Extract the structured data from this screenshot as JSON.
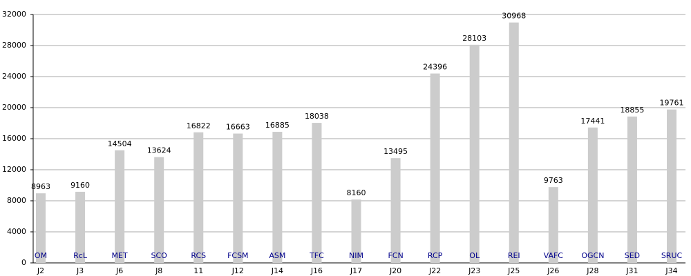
{
  "chart_data": {
    "type": "bar",
    "categories": [
      "J2",
      "J3",
      "J6",
      "J8",
      "11",
      "J12",
      "J14",
      "J16",
      "J17",
      "J20",
      "J22",
      "J23",
      "J25",
      "J26",
      "J28",
      "J31",
      "J34"
    ],
    "team_labels": [
      "OM",
      "RcL",
      "MET",
      "SCO",
      "RCS",
      "FCSM",
      "ASM",
      "TFC",
      "NIM",
      "FCN",
      "RCP",
      "OL",
      "REI",
      "VAFC",
      "OGCN",
      "SED",
      "SRUC"
    ],
    "values": [
      8963,
      9160,
      14504,
      13624,
      16822,
      16663,
      16885,
      18038,
      8160,
      13495,
      24396,
      28103,
      30968,
      9763,
      17441,
      18855,
      19761
    ],
    "color": "#cccccc",
    "ylim": [
      0,
      32000
    ],
    "yticks": [
      0,
      4000,
      8000,
      12000,
      16000,
      20000,
      24000,
      28000,
      32000
    ],
    "grid": true
  }
}
